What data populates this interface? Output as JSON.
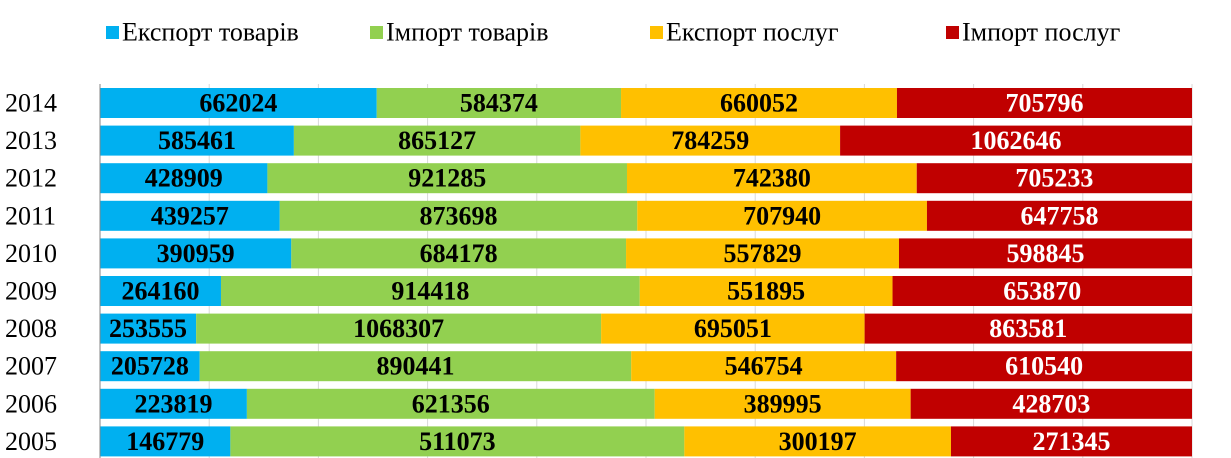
{
  "chart_data": {
    "type": "bar",
    "orientation": "horizontal",
    "stacking": "percent",
    "categories": [
      "2014",
      "2013",
      "2012",
      "2011",
      "2010",
      "2009",
      "2008",
      "2007",
      "2006",
      "2005"
    ],
    "series": [
      {
        "name": "Експорт товарів",
        "color": "#00b0f0",
        "label_color": "#000000",
        "values": [
          662024,
          585461,
          428909,
          439257,
          390959,
          264160,
          253555,
          205728,
          223819,
          146779
        ]
      },
      {
        "name": "Імпорт товарів",
        "color": "#92d050",
        "label_color": "#000000",
        "values": [
          584374,
          865127,
          921285,
          873698,
          684178,
          914418,
          1068307,
          890441,
          621356,
          511073
        ]
      },
      {
        "name": "Експорт послуг",
        "color": "#ffc000",
        "label_color": "#000000",
        "values": [
          660052,
          784259,
          742380,
          707940,
          557829,
          551895,
          695051,
          546754,
          389995,
          300197
        ]
      },
      {
        "name": "Імпорт послуг",
        "color": "#c00000",
        "label_color": "#ffffff",
        "values": [
          705796,
          1062646,
          705233,
          647758,
          598845,
          653870,
          863581,
          610540,
          428703,
          271345
        ]
      }
    ],
    "xlim": [
      0,
      100
    ],
    "xticks": [
      0,
      10,
      20,
      30,
      40,
      50,
      60,
      70,
      80,
      90,
      100
    ],
    "grid": true,
    "legend": "top"
  }
}
